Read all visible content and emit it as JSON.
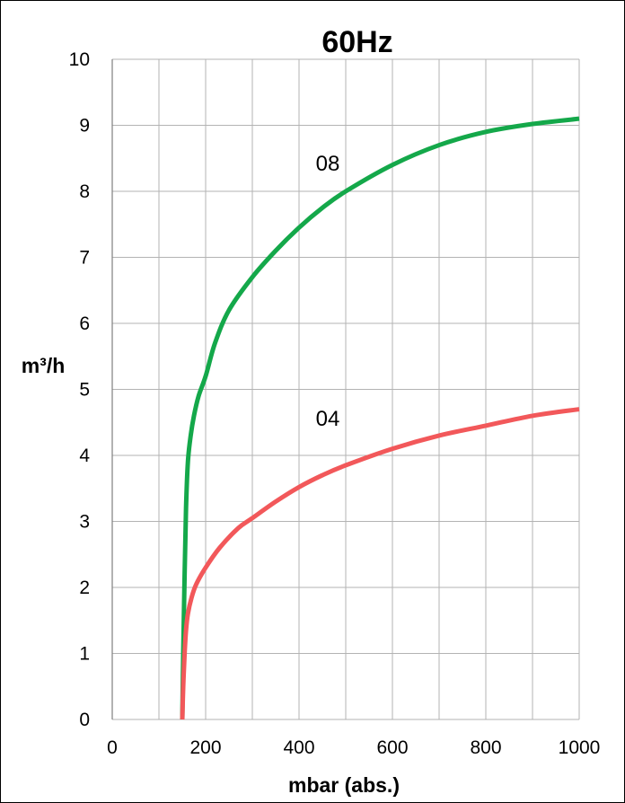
{
  "chart_data": {
    "type": "line",
    "title": "60Hz",
    "xlabel": "mbar (abs.)",
    "ylabel": "m³/h",
    "xlim": [
      0,
      1000
    ],
    "ylim": [
      0,
      10
    ],
    "x_ticks": [
      "0",
      "200",
      "400",
      "600",
      "800",
      "1000"
    ],
    "y_ticks": [
      "0",
      "1",
      "2",
      "3",
      "4",
      "5",
      "6",
      "7",
      "8",
      "9",
      "10"
    ],
    "grid": true,
    "legend": "none",
    "series": [
      {
        "name": "08",
        "color": "#14A84A",
        "x": [
          150,
          152,
          155,
          158,
          162,
          168,
          175,
          185,
          200,
          220,
          250,
          300,
          350,
          400,
          450,
          500,
          600,
          700,
          800,
          900,
          1000
        ],
        "y": [
          0,
          1.0,
          2.2,
          3.2,
          3.9,
          4.3,
          4.6,
          4.9,
          5.2,
          5.7,
          6.2,
          6.7,
          7.1,
          7.45,
          7.75,
          8.0,
          8.4,
          8.7,
          8.9,
          9.02,
          9.1
        ]
      },
      {
        "name": "04",
        "color": "#F2585A",
        "x": [
          150,
          152,
          155,
          158,
          162,
          170,
          180,
          200,
          230,
          270,
          300,
          350,
          400,
          450,
          500,
          600,
          700,
          800,
          900,
          1000
        ],
        "y": [
          0,
          0.5,
          1.0,
          1.35,
          1.6,
          1.85,
          2.05,
          2.3,
          2.6,
          2.9,
          3.05,
          3.3,
          3.52,
          3.7,
          3.85,
          4.1,
          4.3,
          4.45,
          4.6,
          4.7
        ]
      }
    ]
  }
}
